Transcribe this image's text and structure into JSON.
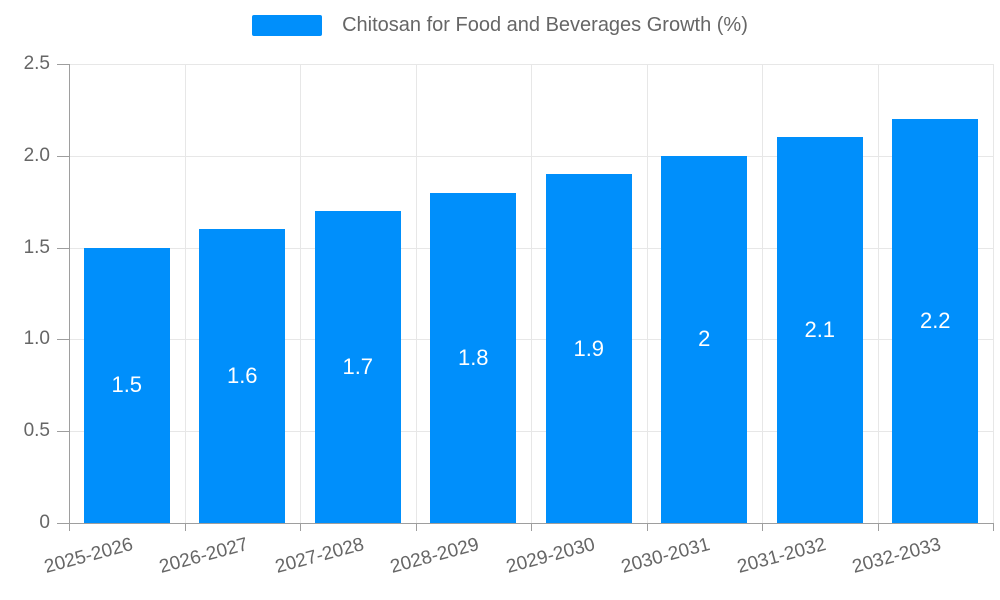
{
  "chart_data": {
    "type": "bar",
    "title": "Chitosan for Food and Beverages Growth (%)",
    "categories": [
      "2025-2026",
      "2026-2027",
      "2027-2028",
      "2028-2029",
      "2029-2030",
      "2030-2031",
      "2031-2032",
      "2032-2033"
    ],
    "values": [
      1.5,
      1.6,
      1.7,
      1.8,
      1.9,
      2,
      2.1,
      2.2
    ],
    "bar_labels": [
      "1.5",
      "1.6",
      "1.7",
      "1.8",
      "1.9",
      "2",
      "2.1",
      "2.2"
    ],
    "y_ticks": [
      {
        "label": "0",
        "value": 0
      },
      {
        "label": "0.5",
        "value": 0.5
      },
      {
        "label": "1.0",
        "value": 1
      },
      {
        "label": "1.5",
        "value": 1.5
      },
      {
        "label": "2.0",
        "value": 2
      },
      {
        "label": "2.5",
        "value": 2.5
      }
    ],
    "ylim": [
      0,
      2.5
    ],
    "xlabel": "",
    "ylabel": "",
    "grid": true,
    "legend_position": "top",
    "value_label_position": "inside-middle",
    "colors": {
      "bar": "#008FFB",
      "grid": "#e7e7e7",
      "axis": "#9e9e9e",
      "tick_text": "#666666",
      "bar_label_text": "#ffffff",
      "background": "#ffffff"
    }
  }
}
